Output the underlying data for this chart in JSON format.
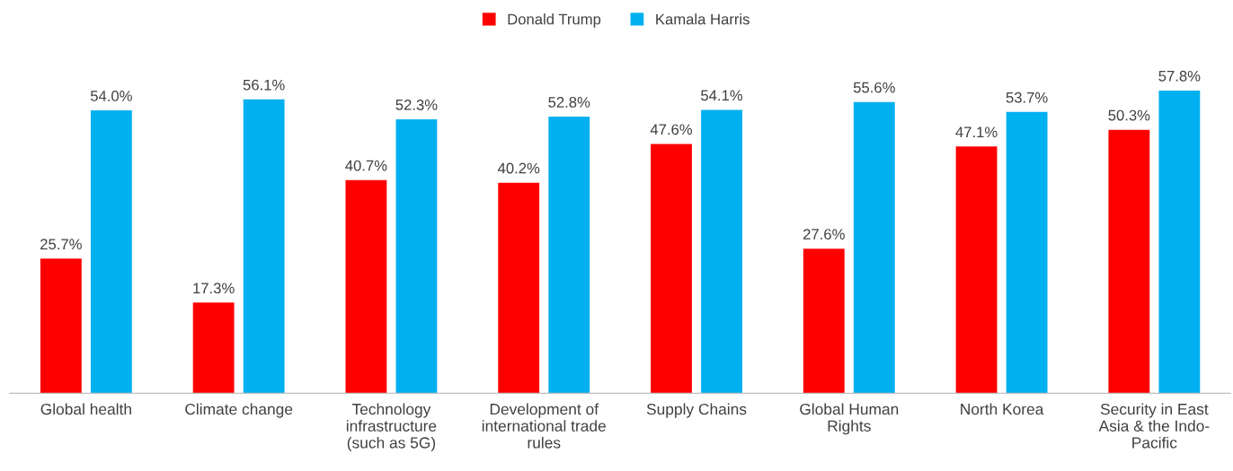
{
  "chart_data": {
    "type": "bar",
    "categories": [
      "Global health",
      "Climate change",
      "Technology\ninfrastructure\n(such as 5G)",
      "Development of\ninternational trade\nrules",
      "Supply Chains",
      "Global Human\nRights",
      "North Korea",
      "Security in East\nAsia & the Indo-\nPacific"
    ],
    "series": [
      {
        "name": "Donald Trump",
        "color": "#ff0000",
        "values": [
          25.7,
          17.3,
          40.7,
          40.2,
          47.6,
          27.6,
          47.1,
          50.3
        ],
        "value_labels": [
          "25.7%",
          "17.3%",
          "40.7%",
          "40.2%",
          "47.6%",
          "27.6%",
          "47.1%",
          "50.3%"
        ]
      },
      {
        "name": "Kamala Harris",
        "color": "#00b0f0",
        "values": [
          54.0,
          56.1,
          52.3,
          52.8,
          54.1,
          55.6,
          53.7,
          57.8
        ],
        "value_labels": [
          "54.0%",
          "56.1%",
          "52.3%",
          "52.8%",
          "54.1%",
          "55.6%",
          "53.7%",
          "57.8%"
        ]
      }
    ],
    "legend": "top",
    "grid": false
  }
}
